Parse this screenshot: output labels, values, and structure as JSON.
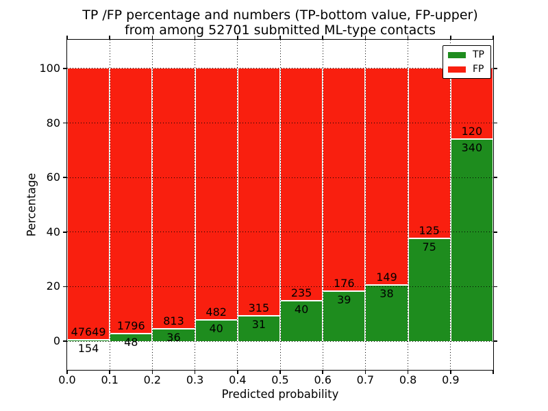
{
  "chart_data": {
    "type": "bar",
    "stacked": true,
    "normalized_to_percent": true,
    "title_line1": "TP /FP percentage and numbers (TP-bottom value, FP-upper)",
    "title_line2": "from among 52701 submitted ML-type contacts",
    "total_contacts": 52701,
    "xlabel": "Predicted probability",
    "ylabel": "Percentage",
    "categories": [
      "0.0",
      "0.1",
      "0.2",
      "0.3",
      "0.4",
      "0.5",
      "0.6",
      "0.7",
      "0.8",
      "0.9"
    ],
    "x_tick_labels": [
      "0.0",
      "0.1",
      "0.2",
      "0.3",
      "0.4",
      "0.5",
      "0.6",
      "0.7",
      "0.8",
      "0.9"
    ],
    "y_ticks": [
      0,
      20,
      40,
      60,
      80,
      100
    ],
    "xlim": [
      0.0,
      1.0
    ],
    "ylim": [
      -10.55,
      110.55
    ],
    "bin_width": 0.1,
    "grid": true,
    "grid_style": "dotted",
    "axis_grid_on_top": true,
    "series": [
      {
        "name": "TP",
        "color": "#1e8c1e",
        "values": [
          154,
          48,
          36,
          40,
          31,
          40,
          39,
          38,
          75,
          340
        ]
      },
      {
        "name": "FP",
        "color": "#f91f0f",
        "values": [
          47649,
          1796,
          813,
          482,
          315,
          235,
          176,
          149,
          125,
          120
        ]
      }
    ],
    "legend": {
      "position": "upper right",
      "entries": [
        {
          "label": "TP",
          "color": "#1e8c1e"
        },
        {
          "label": "FP",
          "color": "#f91f0f"
        }
      ]
    },
    "colors": {
      "tp": "#1e8c1e",
      "fp": "#f91f0f",
      "grid": "#000000",
      "background": "#ffffff"
    }
  }
}
